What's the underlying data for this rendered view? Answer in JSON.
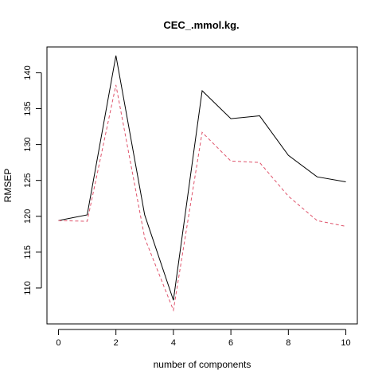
{
  "chart_data": {
    "type": "line",
    "title": "CEC_.mmol.kg.",
    "xlabel": "number of components",
    "ylabel": "RMSEP",
    "x": [
      0,
      1,
      2,
      3,
      4,
      5,
      6,
      7,
      8,
      9,
      10
    ],
    "xlim": [
      -0.4,
      10.4
    ],
    "ylim": [
      105.0,
      143.6
    ],
    "xticks": [
      0,
      2,
      4,
      6,
      8,
      10
    ],
    "yticks": [
      110,
      115,
      120,
      125,
      130,
      135,
      140
    ],
    "grid": false,
    "legend": "none",
    "series": [
      {
        "values": [
          119.4,
          120.2,
          142.4,
          120.2,
          108.3,
          137.5,
          133.6,
          134.0,
          128.5,
          125.5,
          124.8
        ],
        "color": "#000000",
        "dash": "solid"
      },
      {
        "values": [
          119.4,
          119.3,
          138.3,
          117.0,
          106.9,
          131.7,
          127.7,
          127.5,
          122.8,
          119.4,
          118.6
        ],
        "color": "#DF536B",
        "dash": "dashed"
      }
    ]
  }
}
